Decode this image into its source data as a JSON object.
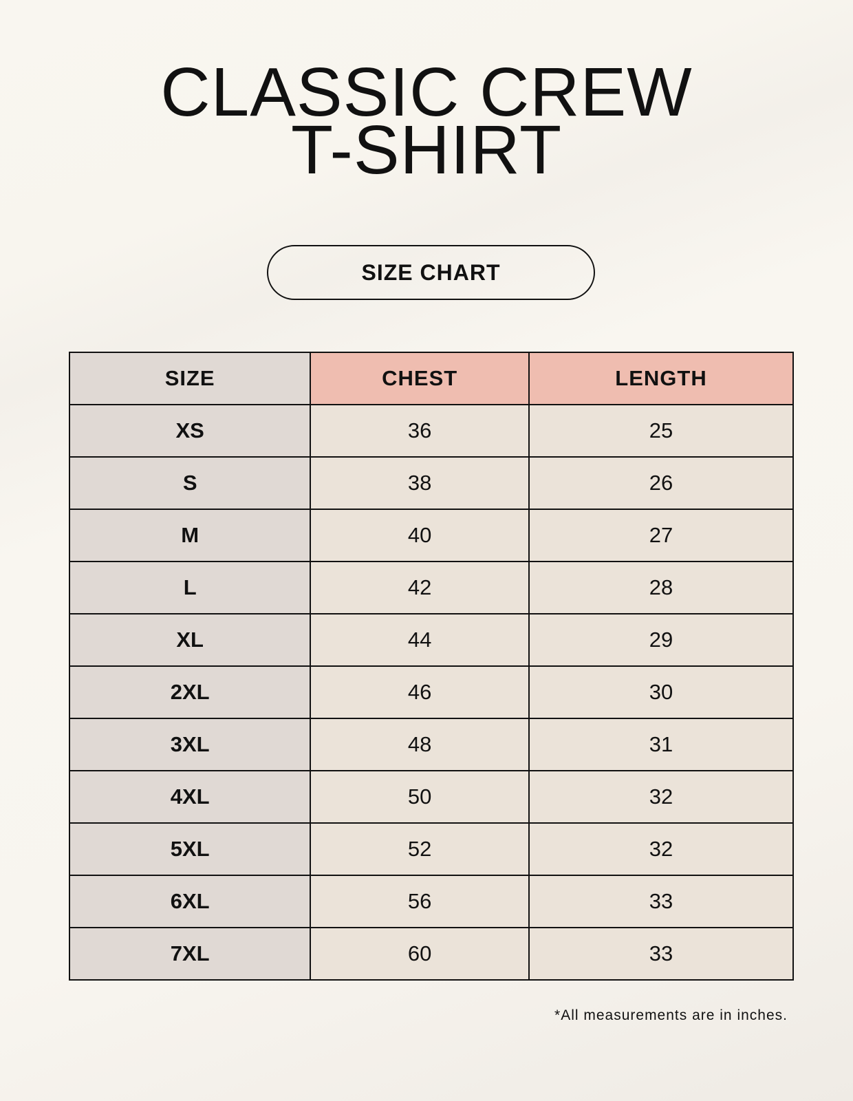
{
  "title": {
    "line1": "CLASSIC CREW",
    "line2": "T-SHIRT"
  },
  "badge": "SIZE CHART",
  "table": {
    "headers": [
      "SIZE",
      "CHEST",
      "LENGTH"
    ],
    "rows": [
      [
        "XS",
        "36",
        "25"
      ],
      [
        "S",
        "38",
        "26"
      ],
      [
        "M",
        "40",
        "27"
      ],
      [
        "L",
        "42",
        "28"
      ],
      [
        "XL",
        "44",
        "29"
      ],
      [
        "2XL",
        "46",
        "30"
      ],
      [
        "3XL",
        "48",
        "31"
      ],
      [
        "4XL",
        "50",
        "32"
      ],
      [
        "5XL",
        "52",
        "32"
      ],
      [
        "6XL",
        "56",
        "33"
      ],
      [
        "7XL",
        "60",
        "33"
      ]
    ]
  },
  "footnote": "*All measurements are in inches.",
  "colors": {
    "size_column": "#e0d9d4",
    "header_accent": "#efbdb0",
    "value_cells": "#ebe3d9",
    "background": "#f8f5ef"
  }
}
